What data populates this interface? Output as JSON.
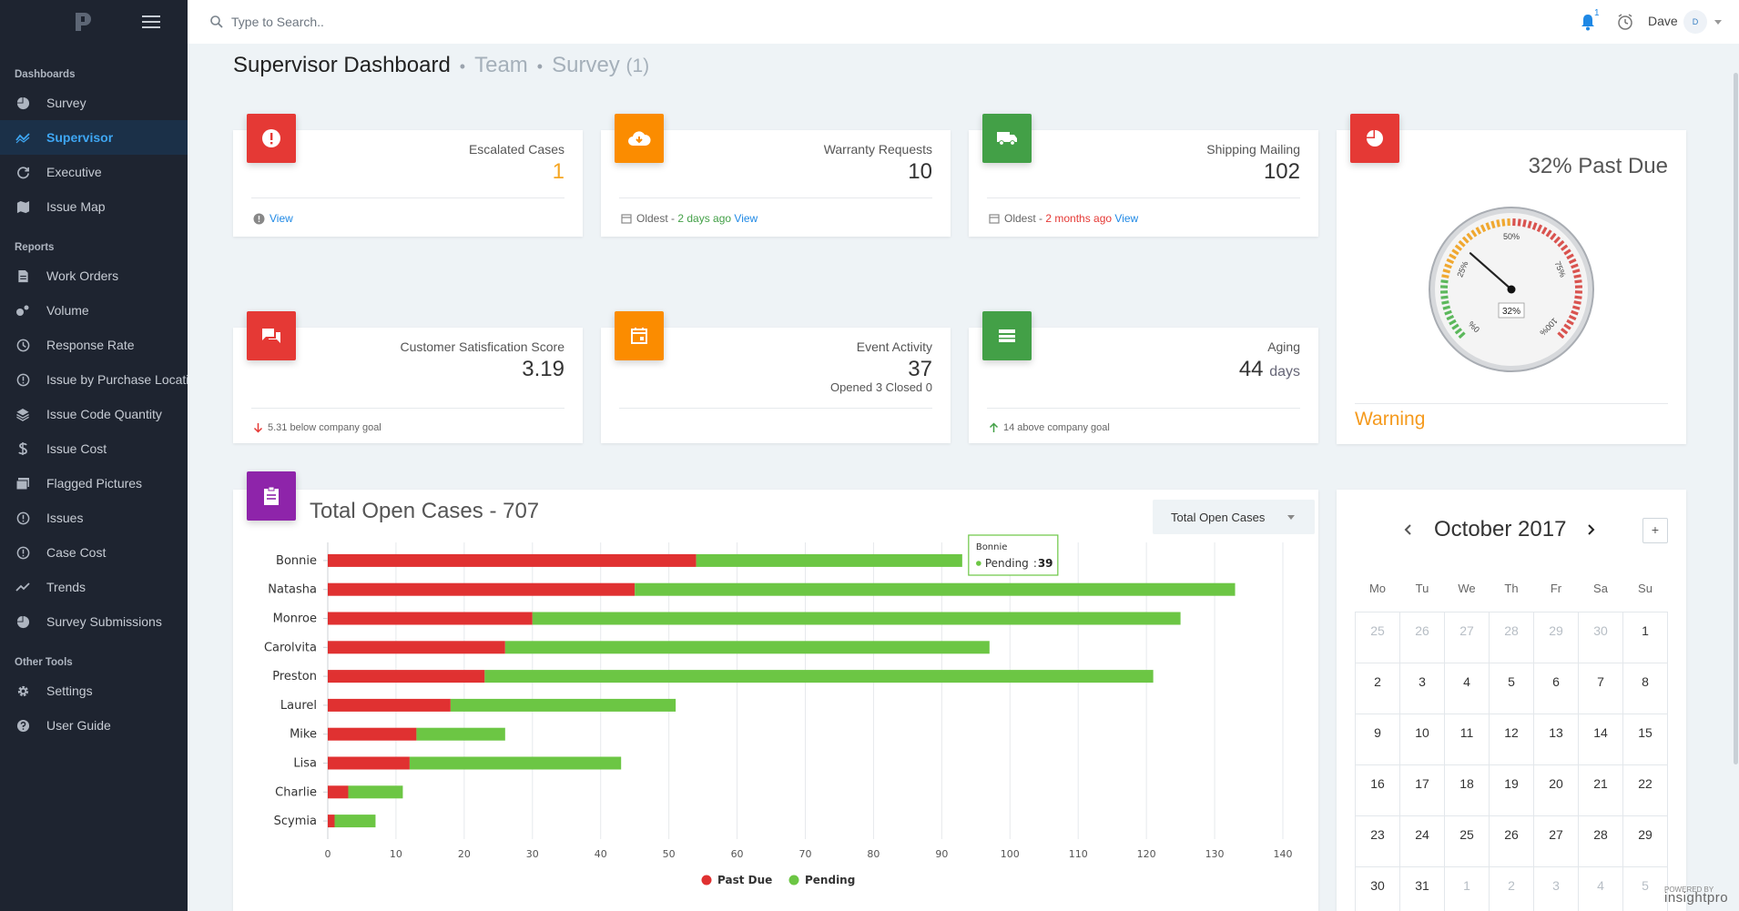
{
  "sidebar": {
    "sections": [
      {
        "title": "Dashboards",
        "items": [
          {
            "label": "Survey",
            "icon": "pie-chart-icon"
          },
          {
            "label": "Supervisor",
            "icon": "trend-icon",
            "active": true
          },
          {
            "label": "Executive",
            "icon": "refresh-icon"
          },
          {
            "label": "Issue Map",
            "icon": "map-icon"
          }
        ]
      },
      {
        "title": "Reports",
        "items": [
          {
            "label": "Work Orders",
            "icon": "document-icon"
          },
          {
            "label": "Volume",
            "icon": "bubbles-icon"
          },
          {
            "label": "Response Rate",
            "icon": "history-icon"
          },
          {
            "label": "Issue by Purchase Location",
            "icon": "info-circle-icon"
          },
          {
            "label": "Issue Code Quantity",
            "icon": "layers-icon"
          },
          {
            "label": "Issue Cost",
            "icon": "dollar-icon"
          },
          {
            "label": "Flagged Pictures",
            "icon": "pictures-icon"
          },
          {
            "label": "Issues",
            "icon": "info-circle-icon"
          },
          {
            "label": "Case Cost",
            "icon": "info-circle-icon"
          },
          {
            "label": "Trends",
            "icon": "trend-line-icon"
          },
          {
            "label": "Survey Submissions",
            "icon": "pie-chart-icon"
          }
        ]
      },
      {
        "title": "Other Tools",
        "items": [
          {
            "label": "Settings",
            "icon": "gear-icon"
          },
          {
            "label": "User Guide",
            "icon": "question-icon"
          }
        ]
      }
    ]
  },
  "topbar": {
    "search_placeholder": "Type to Search..",
    "notification_count": "1",
    "user_name": "Dave",
    "avatar_initial": "D"
  },
  "page": {
    "title": "Supervisor Dashboard",
    "crumb_team": "Team",
    "crumb_survey": "Survey",
    "crumb_survey_count": "(1)"
  },
  "cards": {
    "escalated": {
      "label": "Escalated Cases",
      "value": "1",
      "value_color": "#f5a623",
      "view": "View"
    },
    "warranty": {
      "label": "Warranty Requests",
      "value": "10",
      "oldest_prefix": "Oldest - ",
      "oldest": "2 days ago",
      "oldest_color": "#43a047",
      "view": "View"
    },
    "shipping": {
      "label": "Shipping Mailing",
      "value": "102",
      "oldest_prefix": "Oldest - ",
      "oldest": "2 months ago",
      "oldest_color": "#e53935",
      "view": "View"
    },
    "satisfaction": {
      "label": "Customer Satisfication Score",
      "value": "3.19",
      "foot": "5.31 below company goal"
    },
    "event": {
      "label": "Event Activity",
      "value": "37",
      "sub": "Opened 3 Closed 0"
    },
    "aging": {
      "label": "Aging",
      "value": "44",
      "unit": "days",
      "foot": "14 above company goal"
    }
  },
  "gauge": {
    "title": "32% Past Due",
    "value": 32,
    "readout": "32%",
    "tick_labels": [
      "0%",
      "25%",
      "50%",
      "75%",
      "100%"
    ],
    "status": "Warning"
  },
  "open_cases": {
    "title": "Total Open Cases - 707",
    "dropdown_label": "Total Open Cases",
    "tooltip": {
      "name": "Bonnie",
      "series": "Pending",
      "value": "39"
    }
  },
  "chart_data": {
    "type": "bar",
    "orientation": "horizontal",
    "stacked": true,
    "categories": [
      "Bonnie",
      "Natasha",
      "Monroe",
      "Carolvita",
      "Preston",
      "Laurel",
      "Mike",
      "Lisa",
      "Charlie",
      "Scymia"
    ],
    "series": [
      {
        "name": "Past Due",
        "color": "#e03131",
        "values": [
          54,
          45,
          30,
          26,
          23,
          18,
          13,
          12,
          3,
          1
        ]
      },
      {
        "name": "Pending",
        "color": "#6cc644",
        "values": [
          39,
          88,
          95,
          71,
          98,
          33,
          13,
          31,
          8,
          6
        ]
      }
    ],
    "xlim": [
      0,
      140
    ],
    "xticks": [
      "0",
      "10",
      "20",
      "30",
      "40",
      "50",
      "60",
      "70",
      "80",
      "90",
      "100",
      "110",
      "120",
      "130",
      "140"
    ],
    "grid": true,
    "legend_position": "bottom"
  },
  "calendar": {
    "month_label": "October 2017",
    "plus_label": "+",
    "weekdays": [
      "Mo",
      "Tu",
      "We",
      "Th",
      "Fr",
      "Sa",
      "Su"
    ],
    "weeks": [
      [
        {
          "d": "25",
          "o": true
        },
        {
          "d": "26",
          "o": true
        },
        {
          "d": "27",
          "o": true
        },
        {
          "d": "28",
          "o": true
        },
        {
          "d": "29",
          "o": true
        },
        {
          "d": "30",
          "o": true
        },
        {
          "d": "1",
          "o": false
        }
      ],
      [
        {
          "d": "2",
          "o": false
        },
        {
          "d": "3",
          "o": false
        },
        {
          "d": "4",
          "o": false
        },
        {
          "d": "5",
          "o": false
        },
        {
          "d": "6",
          "o": false
        },
        {
          "d": "7",
          "o": false
        },
        {
          "d": "8",
          "o": false
        }
      ],
      [
        {
          "d": "9",
          "o": false
        },
        {
          "d": "10",
          "o": false
        },
        {
          "d": "11",
          "o": false
        },
        {
          "d": "12",
          "o": false
        },
        {
          "d": "13",
          "o": false
        },
        {
          "d": "14",
          "o": false
        },
        {
          "d": "15",
          "o": false
        }
      ],
      [
        {
          "d": "16",
          "o": false
        },
        {
          "d": "17",
          "o": false
        },
        {
          "d": "18",
          "o": false
        },
        {
          "d": "19",
          "o": false
        },
        {
          "d": "20",
          "o": false
        },
        {
          "d": "21",
          "o": false
        },
        {
          "d": "22",
          "o": false
        }
      ],
      [
        {
          "d": "23",
          "o": false
        },
        {
          "d": "24",
          "o": false
        },
        {
          "d": "25",
          "o": false
        },
        {
          "d": "26",
          "o": false
        },
        {
          "d": "27",
          "o": false
        },
        {
          "d": "28",
          "o": false
        },
        {
          "d": "29",
          "o": false
        }
      ],
      [
        {
          "d": "30",
          "o": false
        },
        {
          "d": "31",
          "o": false
        },
        {
          "d": "1",
          "o": true
        },
        {
          "d": "2",
          "o": true
        },
        {
          "d": "3",
          "o": true
        },
        {
          "d": "4",
          "o": true
        },
        {
          "d": "5",
          "o": true
        }
      ]
    ]
  },
  "footer": {
    "powered_by": "POWERED BY",
    "brand": "insightpro"
  }
}
